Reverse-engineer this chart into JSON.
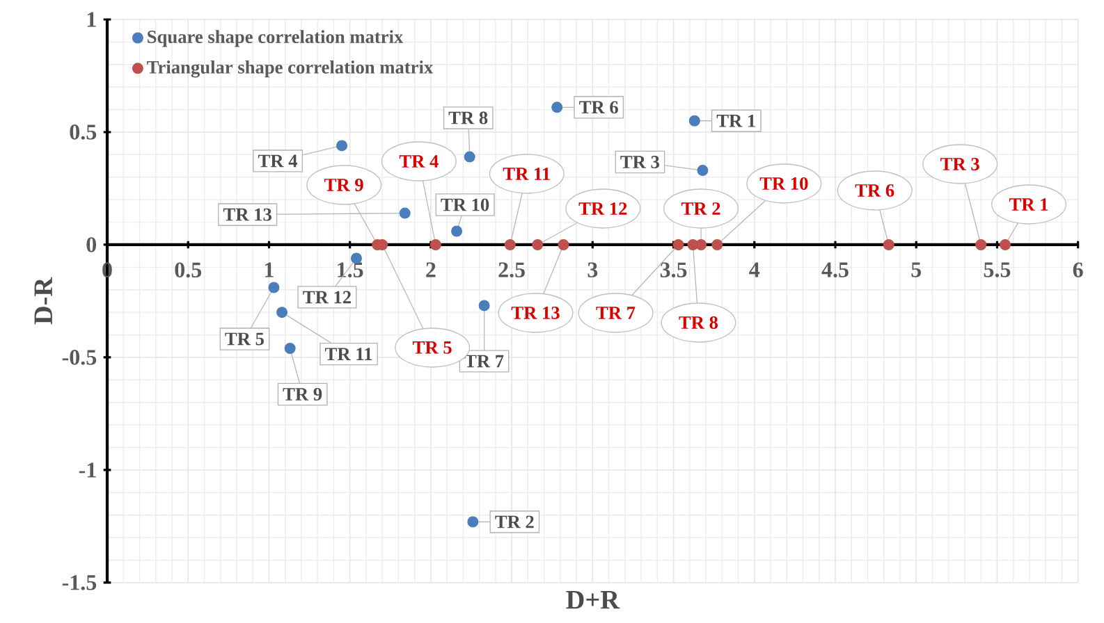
{
  "chart_data": {
    "type": "scatter",
    "xlabel": "D+R",
    "ylabel": "D-R",
    "xlim": [
      0,
      6
    ],
    "ylim": [
      -1.5,
      1
    ],
    "xticks": [
      0,
      0.5,
      1,
      1.5,
      2,
      2.5,
      3,
      3.5,
      4,
      4.5,
      5,
      5.5,
      6
    ],
    "yticks": [
      -1.5,
      -1,
      -0.5,
      0,
      0.5,
      1
    ],
    "grid": true,
    "legend": "top left",
    "marker": "circle",
    "series": [
      {
        "name": "Square shape correlation matrix",
        "color": "#4a7ebb",
        "x": [
          3.63,
          2.26,
          3.68,
          1.45,
          1.03,
          2.78,
          2.33,
          2.24,
          1.13,
          2.16,
          1.08,
          1.54,
          1.84
        ],
        "values": [
          0.55,
          -1.23,
          0.33,
          0.44,
          -0.19,
          0.61,
          -0.27,
          0.39,
          -0.46,
          0.06,
          -0.3,
          -0.06,
          0.14
        ],
        "value_labels": [
          "TR 1",
          "TR 2",
          "TR 3",
          "TR 4",
          "TR 5",
          "TR 6",
          "TR 7",
          "TR 8",
          "TR 9",
          "TR 10",
          "TR 11",
          "TR 12",
          "TR 13"
        ]
      },
      {
        "name": "Triangular shape correlation matrix",
        "color": "#c0504d",
        "x": [
          5.55,
          3.67,
          5.4,
          2.03,
          1.7,
          4.83,
          3.53,
          3.62,
          1.67,
          3.77,
          2.49,
          2.66,
          2.82
        ],
        "values": [
          0,
          0,
          0,
          0,
          0,
          0,
          0,
          0,
          0,
          0,
          0,
          0,
          0
        ],
        "value_labels": [
          "TR 1",
          "TR 2",
          "TR 3",
          "TR 4",
          "TR 5",
          "TR 6",
          "TR 7",
          "TR 8",
          "TR 9",
          "TR 10",
          "TR 11",
          "TR 12",
          "TR 13"
        ]
      }
    ]
  }
}
